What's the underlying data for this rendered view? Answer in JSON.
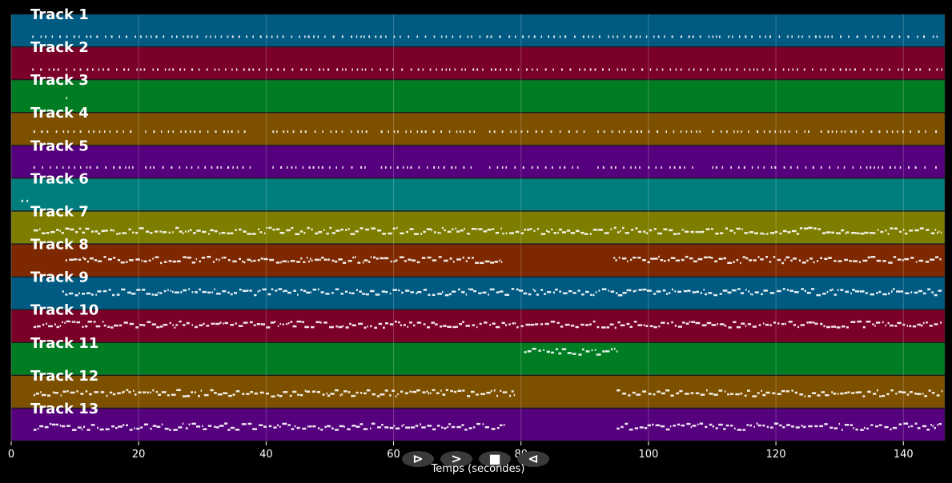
{
  "chart_data": {
    "type": "piano-roll",
    "xlabel": "Temps (secondes)",
    "xlim": [
      0,
      146.5
    ],
    "xticks": [
      0,
      20,
      40,
      60,
      80,
      100,
      120,
      140
    ],
    "grid": true,
    "tracks": [
      {
        "name": "Track 1",
        "color": "#005a82",
        "note_level": 0.68,
        "active": [
          [
            3.3,
            146
          ]
        ]
      },
      {
        "name": "Track 2",
        "color": "#7a0028",
        "note_level": 0.68,
        "active": [
          [
            3.3,
            146
          ]
        ]
      },
      {
        "name": "Track 3",
        "color": "#007d23",
        "note_level": 0.55,
        "active": [
          [
            8.6,
            8.8
          ]
        ]
      },
      {
        "name": "Track 4",
        "color": "#7d5000",
        "note_level": 0.57,
        "active": [
          [
            3.5,
            19
          ],
          [
            21,
            37.5
          ],
          [
            41,
            56
          ],
          [
            58,
            73
          ],
          [
            75,
            90
          ],
          [
            92,
            108
          ],
          [
            110,
            126
          ],
          [
            127,
            143.5
          ],
          [
            145,
            146
          ]
        ]
      },
      {
        "name": "Track 5",
        "color": "#55007d",
        "note_level": 0.66,
        "active": [
          [
            3.5,
            19
          ],
          [
            21,
            37.5
          ],
          [
            41,
            56
          ],
          [
            58,
            73
          ],
          [
            75,
            90
          ],
          [
            92,
            108
          ],
          [
            110,
            126
          ],
          [
            127,
            143.5
          ],
          [
            145,
            146
          ]
        ]
      },
      {
        "name": "Track 6",
        "color": "#007d7d",
        "note_level": 0.68,
        "active": [
          [
            1.6,
            1.9
          ],
          [
            2.4,
            2.7
          ]
        ]
      },
      {
        "name": "Track 7",
        "color": "#7d7d00",
        "note_level": 0.6,
        "active": [
          [
            3.5,
            146
          ]
        ]
      },
      {
        "name": "Track 8",
        "color": "#7d2800",
        "note_level": 0.48,
        "active": [
          [
            8.5,
            77
          ],
          [
            94.5,
            146
          ]
        ]
      },
      {
        "name": "Track 9",
        "color": "#005a82",
        "note_level": 0.46,
        "active": [
          [
            8,
            146
          ]
        ]
      },
      {
        "name": "Track 10",
        "color": "#7a0028",
        "note_level": 0.45,
        "active": [
          [
            3.5,
            146
          ]
        ]
      },
      {
        "name": "Track 11",
        "color": "#007d23",
        "note_level": 0.28,
        "active": [
          [
            80.5,
            95
          ]
        ]
      },
      {
        "name": "Track 12",
        "color": "#7d5000",
        "note_level": 0.54,
        "active": [
          [
            3.5,
            79
          ],
          [
            95,
            146
          ]
        ]
      },
      {
        "name": "Track 13",
        "color": "#55007d",
        "note_level": 0.56,
        "active": [
          [
            3.5,
            77.5
          ],
          [
            95,
            146
          ]
        ]
      }
    ]
  },
  "controls": {
    "play": "⊳",
    "forward": ">",
    "stop": "■",
    "back": "⊲"
  }
}
